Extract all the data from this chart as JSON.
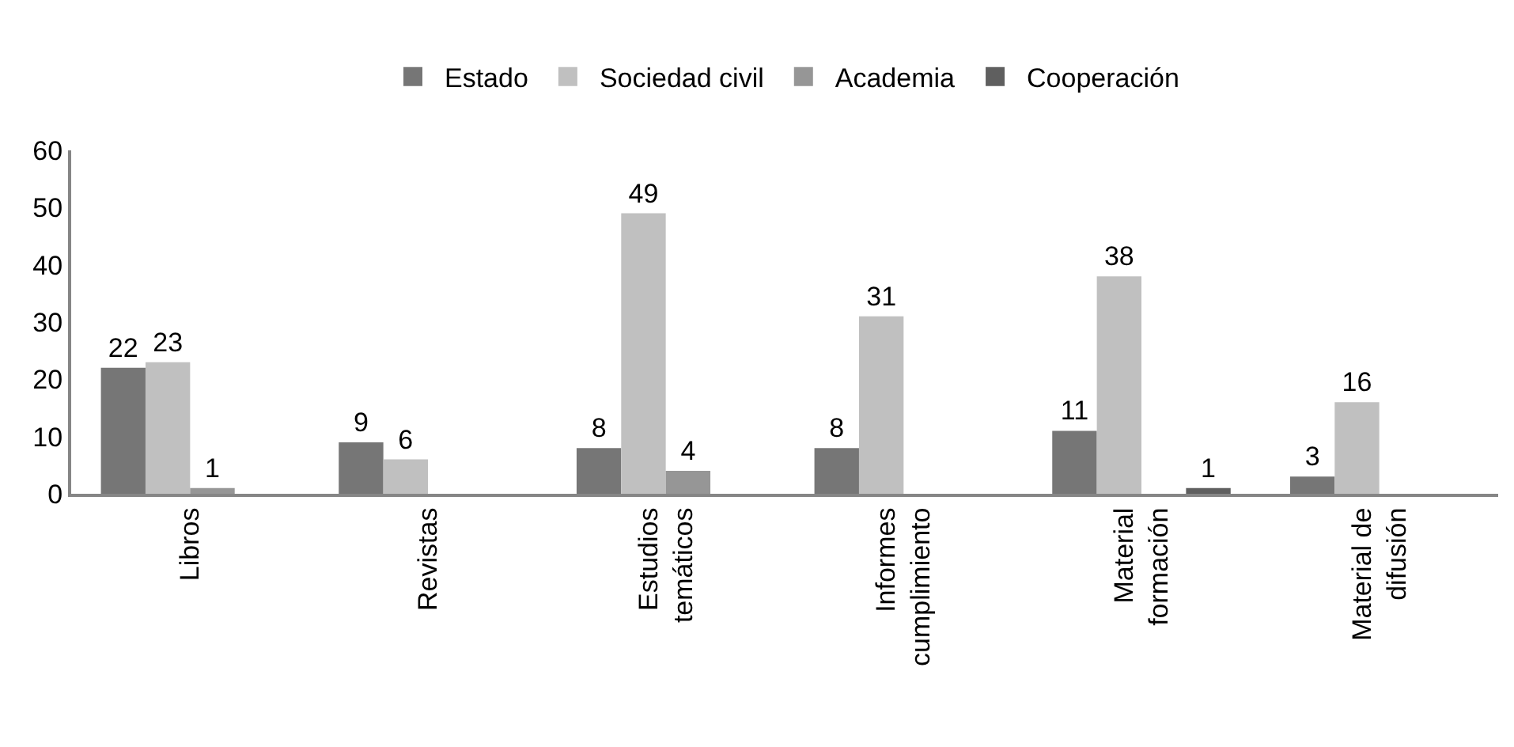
{
  "chart_data": {
    "type": "bar",
    "categories": [
      "Libros",
      "Revistas",
      "Estudios\ntemáticos",
      "Informes\ncumplimiento",
      "Material\nformación",
      "Material de\ndifusión"
    ],
    "series": [
      {
        "name": "Estado",
        "color": "#767676",
        "values": [
          22,
          9,
          8,
          8,
          11,
          3
        ]
      },
      {
        "name": "Sociedad civil",
        "color": "#c0c0c0",
        "values": [
          23,
          6,
          49,
          31,
          38,
          16
        ]
      },
      {
        "name": "Academia",
        "color": "#969696",
        "values": [
          1,
          null,
          4,
          null,
          null,
          null
        ]
      },
      {
        "name": "Cooperación",
        "color": "#5f5f5f",
        "values": [
          null,
          null,
          null,
          null,
          1,
          null
        ]
      }
    ],
    "ylim": [
      0,
      60
    ],
    "yticks": [
      0,
      10,
      20,
      30,
      40,
      50,
      60
    ],
    "legend": "top",
    "data_labels": true
  }
}
